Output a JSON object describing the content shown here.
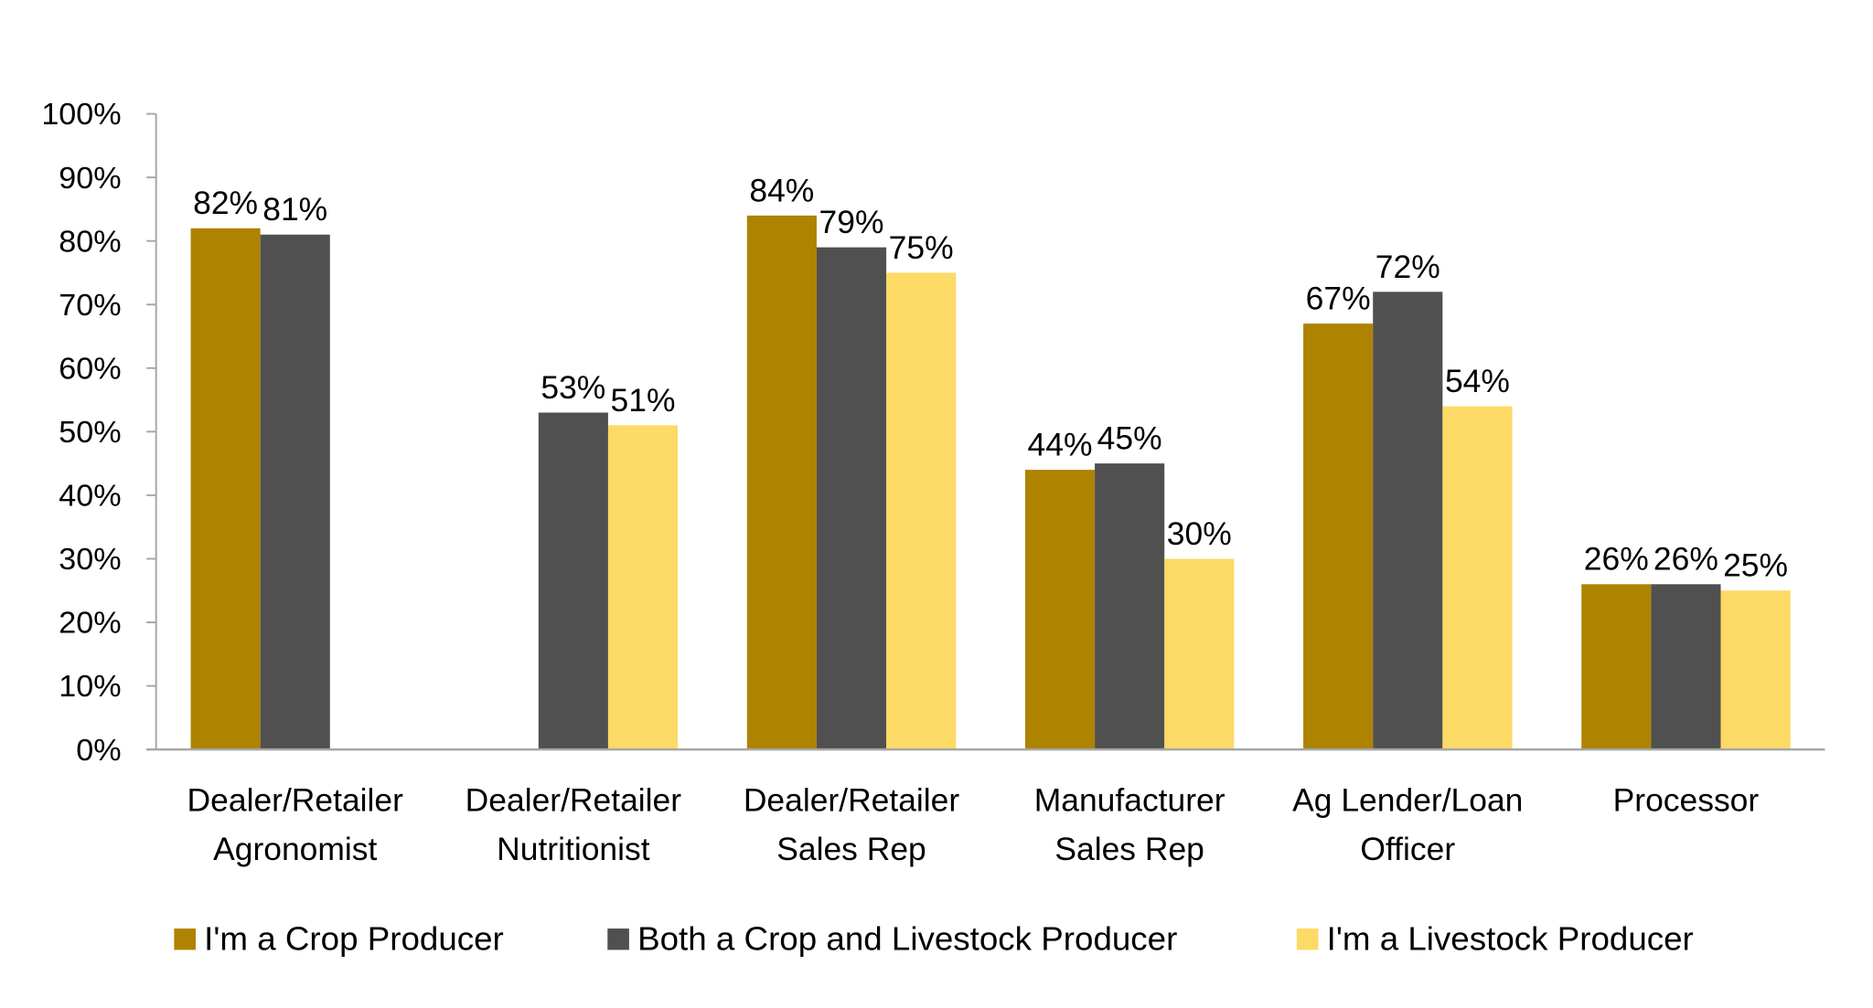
{
  "chart_data": {
    "type": "bar",
    "title": "",
    "xlabel": "",
    "ylabel": "",
    "ylim": [
      0,
      100
    ],
    "y_ticks": [
      "0%",
      "10%",
      "20%",
      "30%",
      "40%",
      "50%",
      "60%",
      "70%",
      "80%",
      "90%",
      "100%"
    ],
    "grid": false,
    "legend_position": "bottom",
    "categories": [
      [
        "Dealer/Retailer",
        "Agronomist"
      ],
      [
        "Dealer/Retailer",
        "Nutritionist"
      ],
      [
        "Dealer/Retailer",
        "Sales Rep"
      ],
      [
        "Manufacturer",
        "Sales Rep"
      ],
      [
        "Ag Lender/Loan",
        "Officer"
      ],
      [
        "Processor"
      ]
    ],
    "series": [
      {
        "name": "I'm a Crop Producer",
        "color": "#AE8300",
        "values": [
          82,
          null,
          84,
          44,
          67,
          26
        ],
        "labels": [
          "82%",
          null,
          "84%",
          "44%",
          "67%",
          "26%"
        ]
      },
      {
        "name": "Both a Crop and Livestock Producer",
        "color": "#505050",
        "values": [
          81,
          53,
          79,
          45,
          72,
          26
        ],
        "labels": [
          "81%",
          "53%",
          "79%",
          "45%",
          "72%",
          "26%"
        ]
      },
      {
        "name": "I'm a Livestock Producer",
        "color": "#FDD966",
        "values": [
          null,
          51,
          75,
          30,
          54,
          25
        ],
        "labels": [
          null,
          "51%",
          "75%",
          "30%",
          "54%",
          "25%"
        ]
      }
    ]
  }
}
